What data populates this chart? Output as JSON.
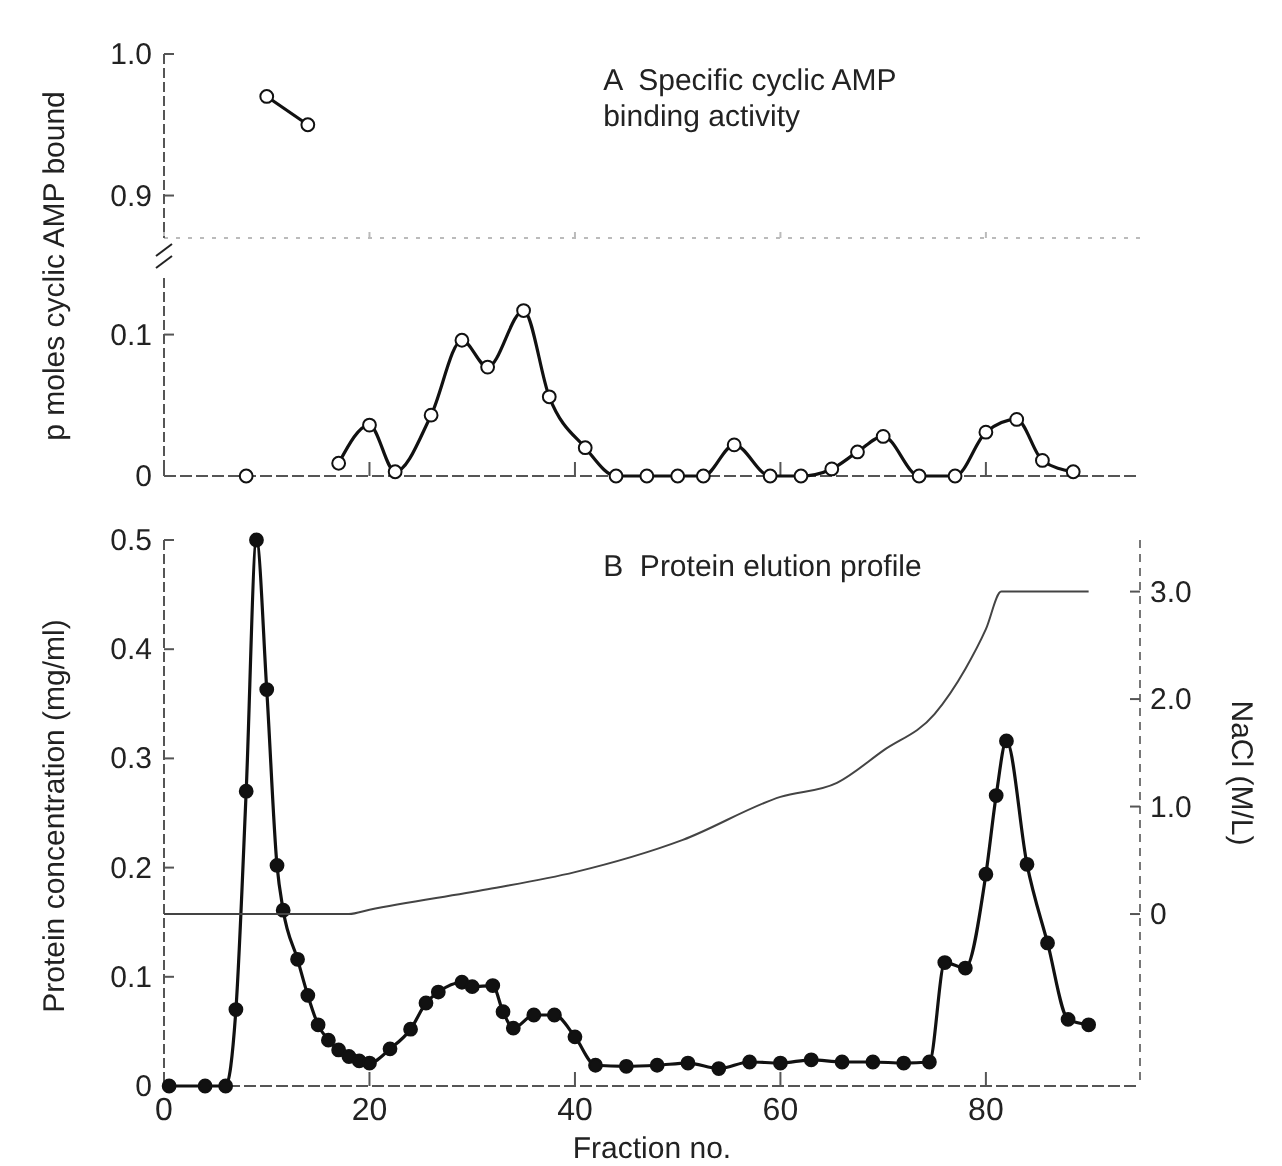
{
  "chart_data": [
    {
      "type": "line",
      "title": "A  Specific cyclic AMP binding activity",
      "xlim": [
        0,
        95
      ],
      "xticks": [
        0,
        20,
        40,
        60,
        80
      ],
      "ylim": [
        0.87,
        1.0
      ],
      "yticks": [
        0.9,
        {
          "value": 1.0,
          "label": "1.0"
        }
      ],
      "tick_labels": "y",
      "series": [
        {
          "color": "#111111",
          "marker": "circle",
          "x": [
            10,
            14
          ],
          "values": [
            0.97,
            0.95
          ]
        }
      ]
    },
    {
      "type": "line",
      "ylabel": "p moles cyclic AMP bound",
      "xlim": [
        0,
        95
      ],
      "xticks": [
        0,
        20,
        40,
        60,
        80
      ],
      "ylim": [
        0,
        0.14
      ],
      "yticks": [
        0,
        0.1
      ],
      "tick_labels": "y",
      "series": [
        {
          "color": "#111111",
          "marker": "circle",
          "x": [
            8,
            10,
            14,
            17,
            20,
            22.5,
            26,
            29,
            31.5,
            35,
            37.5,
            41,
            44,
            47,
            50,
            52.5,
            55.5,
            59,
            62,
            65,
            67.5,
            70,
            73.5,
            77,
            80,
            83,
            85.5,
            88.5
          ],
          "values": [
            0,
            null,
            null,
            0.009,
            0.036,
            0.003,
            0.043,
            0.096,
            0.077,
            0.117,
            0.056,
            0.02,
            0,
            0,
            0,
            0,
            0.022,
            0,
            0,
            0.005,
            0.017,
            0.028,
            0,
            0,
            0.031,
            0.04,
            0.011,
            0.003
          ]
        }
      ]
    },
    {
      "type": "line",
      "title": "B  Protein elution profile",
      "xlabel": "Fraction no.",
      "ylabel": "Protein concentration  (mg/ml)",
      "y2label": "NaCl (M/L)",
      "xlim": [
        0,
        95
      ],
      "xticks": [
        0,
        20,
        40,
        60,
        80
      ],
      "ylim": [
        0,
        0.5
      ],
      "yticks": [
        0,
        0.1,
        0.2,
        0.3,
        0.4,
        0.5
      ],
      "y2lim": [
        -1.6,
        3.48
      ],
      "y2ticks": [
        0,
        {
          "value": 1,
          "label": "1.0"
        },
        {
          "value": 2,
          "label": "2.0"
        },
        {
          "value": 3,
          "label": "3.0"
        }
      ],
      "series": [
        {
          "color": "#111111",
          "marker": "circle",
          "x": [
            0.5,
            4,
            6,
            7,
            8,
            9,
            10,
            11,
            11.6,
            13,
            14,
            15,
            16,
            17,
            18,
            19,
            20,
            22,
            24,
            25.5,
            26.7,
            29,
            30,
            32,
            33,
            34,
            36,
            38,
            40,
            42,
            45,
            48,
            51,
            54,
            57,
            60,
            63,
            66,
            69,
            72,
            74.5,
            76,
            78,
            80,
            81,
            82,
            84,
            86,
            88,
            90
          ],
          "values": [
            0,
            0,
            0,
            0.07,
            0.27,
            0.5,
            0.363,
            0.202,
            0.161,
            0.116,
            0.083,
            0.056,
            0.042,
            0.033,
            0.027,
            0.023,
            0.021,
            0.034,
            0.052,
            0.076,
            0.086,
            0.095,
            0.091,
            0.092,
            0.068,
            0.053,
            0.065,
            0.065,
            0.045,
            0.019,
            0.018,
            0.019,
            0.021,
            0.016,
            0.022,
            0.021,
            0.024,
            0.022,
            0.022,
            0.021,
            0.022,
            0.113,
            0.108,
            0.194,
            0.266,
            0.316,
            0.203,
            0.131,
            0.061,
            0.056
          ]
        },
        {
          "color": "#444444",
          "marker": "none",
          "axis": "y2",
          "x": [
            0,
            18,
            20,
            31.5,
            40,
            50.5,
            60,
            65.5,
            70,
            75,
            78,
            80,
            81.5,
            90
          ],
          "values": [
            0,
            0,
            0.04,
            0.23,
            0.39,
            0.69,
            1.09,
            1.22,
            1.52,
            1.86,
            2.28,
            2.65,
            3.0,
            3.0
          ]
        }
      ]
    }
  ]
}
